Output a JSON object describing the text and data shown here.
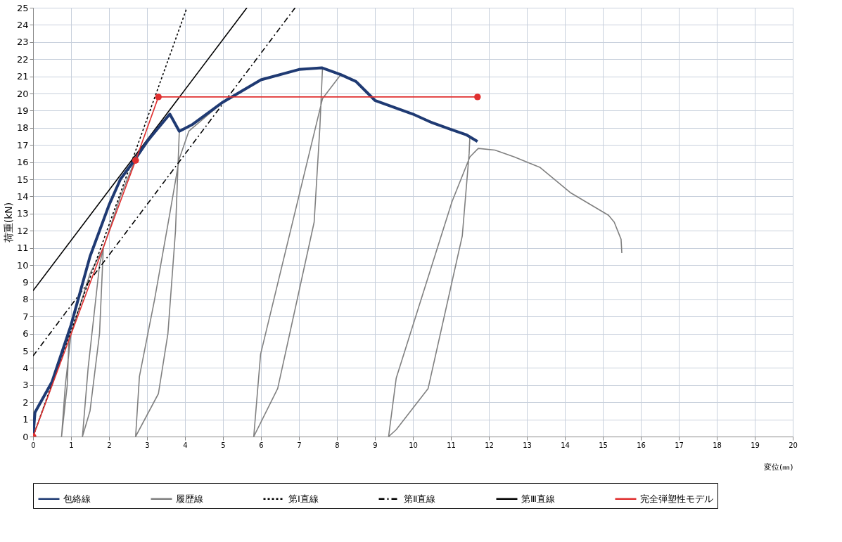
{
  "chart_data": {
    "type": "line",
    "xlabel": "変位(㎜)",
    "ylabel": "荷重(kN)",
    "xlim": [
      0,
      20
    ],
    "xticks": [
      0,
      1,
      2,
      3,
      4,
      5,
      6,
      7,
      8,
      9,
      10,
      11,
      12,
      13,
      14,
      15,
      16,
      17,
      18,
      19,
      20
    ],
    "ylim": [
      0,
      25
    ],
    "yticks": [
      0,
      1,
      2,
      3,
      4,
      5,
      6,
      7,
      8,
      9,
      10,
      11,
      12,
      13,
      14,
      15,
      16,
      17,
      18,
      19,
      20,
      21,
      22,
      23,
      24,
      25
    ],
    "grid": true,
    "legend": "bottom",
    "series": [
      {
        "name": "包絡線",
        "color": "#1f3a73",
        "line_style": "solid",
        "x": [
          0,
          0.05,
          0.5,
          1.0,
          1.5,
          2.0,
          2.3,
          2.7,
          3.0,
          3.3,
          3.6,
          3.85,
          4.2,
          5.0,
          6.0,
          7.0,
          7.6,
          8.1,
          8.5,
          9.0,
          9.5,
          10.0,
          10.5,
          11.0,
          11.4,
          11.7
        ],
        "values": [
          0,
          1.4,
          3.2,
          6.5,
          10.5,
          13.5,
          15.0,
          16.2,
          17.2,
          18.0,
          18.8,
          17.8,
          18.2,
          19.5,
          20.8,
          21.4,
          21.5,
          21.1,
          20.7,
          19.6,
          19.2,
          18.8,
          18.3,
          17.9,
          17.6,
          17.2
        ]
      },
      {
        "name": "履歴線",
        "color": "#808080",
        "line_style": "solid",
        "x": [
          0,
          0.5,
          0.95,
          0.9,
          0.75,
          0.85,
          1.0,
          1.5,
          1.85,
          1.75,
          1.5,
          1.3,
          1.45,
          1.75,
          1.85,
          2.3,
          2.7,
          3.3,
          3.6,
          3.85,
          3.75,
          3.55,
          3.3,
          2.7,
          2.8,
          3.2,
          3.6,
          3.85,
          4.1,
          5.0,
          6.0,
          7.0,
          7.62,
          7.55,
          7.4,
          6.44,
          5.81,
          5.99,
          7.62,
          8.1,
          8.5,
          9.0,
          10.0,
          11.0,
          11.5,
          11.48,
          11.3,
          10.4,
          9.56,
          9.36,
          9.56,
          11.03,
          11.5,
          11.72,
          12.16,
          12.67,
          13.34,
          14.16,
          15.15,
          15.3,
          15.48,
          15.5
        ],
        "values": [
          0,
          3,
          6,
          3,
          0,
          3,
          6,
          9.5,
          11,
          6,
          1.5,
          0,
          4,
          10,
          11,
          14,
          16.2,
          18,
          18.8,
          17.8,
          12,
          6,
          2.5,
          0,
          3.5,
          8,
          13,
          16.2,
          17.8,
          19.5,
          20.8,
          21.4,
          21.5,
          18,
          12.5,
          2.8,
          0,
          4.8,
          19.7,
          21.1,
          20.7,
          19.6,
          18.8,
          17.9,
          17.5,
          16.5,
          11.7,
          2.8,
          0.4,
          0,
          3.4,
          13.7,
          16.3,
          16.8,
          16.7,
          16.3,
          15.7,
          14.2,
          12.9,
          12.5,
          11.5,
          10.7
        ]
      },
      {
        "name": "第Ⅰ直線",
        "color": "#000000",
        "line_style": "dotted",
        "x": [
          0,
          4.05
        ],
        "values": [
          0,
          25
        ]
      },
      {
        "name": "第Ⅱ直線",
        "color": "#000000",
        "line_style": "dashed",
        "x": [
          0,
          6.9
        ],
        "values": [
          4.7,
          25
        ]
      },
      {
        "name": "第Ⅲ直線",
        "color": "#000000",
        "line_style": "solid",
        "x": [
          0,
          5.63
        ],
        "values": [
          8.5,
          25
        ]
      },
      {
        "name": "完全弾塑性モデル",
        "color": "#e03030",
        "line_style": "solid",
        "marker": "circle",
        "x": [
          0,
          2.7,
          3.3,
          11.7
        ],
        "values": [
          0,
          16.1,
          19.8,
          19.8
        ]
      }
    ]
  }
}
